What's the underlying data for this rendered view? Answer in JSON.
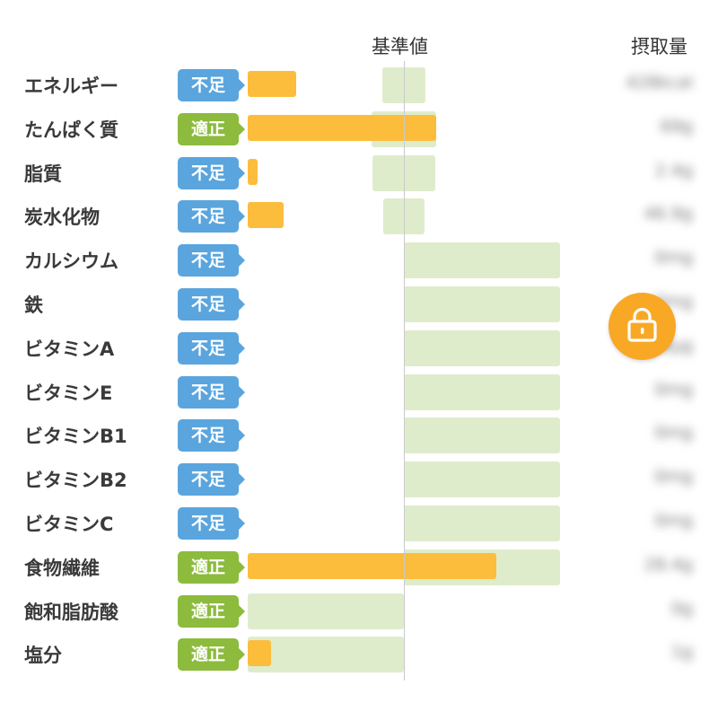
{
  "header": {
    "standard": "基準値",
    "intake": "摂取量"
  },
  "colors": {
    "deficient": "#5aa5de",
    "adequate": "#8cbb3d",
    "bar": "#fcbd3c",
    "range": "#dfeccb",
    "lock": "#f9a825"
  },
  "lock_icon": "lock-icon",
  "rows": [
    {
      "name": "エネルギー",
      "status": "不足",
      "amount": "428kcal"
    },
    {
      "name": "たんぱく質",
      "status": "適正",
      "amount": "69g"
    },
    {
      "name": "脂質",
      "status": "不足",
      "amount": "2.4g"
    },
    {
      "name": "炭水化物",
      "status": "不足",
      "amount": "46.9g"
    },
    {
      "name": "カルシウム",
      "status": "不足",
      "amount": "0mg"
    },
    {
      "name": "鉄",
      "status": "不足",
      "amount": "0mg"
    },
    {
      "name": "ビタミンA",
      "status": "不足",
      "amount": "0μg"
    },
    {
      "name": "ビタミンE",
      "status": "不足",
      "amount": "0mg"
    },
    {
      "name": "ビタミンB1",
      "status": "不足",
      "amount": "0mg"
    },
    {
      "name": "ビタミンB2",
      "status": "不足",
      "amount": "0mg"
    },
    {
      "name": "ビタミンC",
      "status": "不足",
      "amount": "0mg"
    },
    {
      "name": "食物繊維",
      "status": "適正",
      "amount": "28.4g"
    },
    {
      "name": "飽和脂肪酸",
      "status": "適正",
      "amount": "0g"
    },
    {
      "name": "塩分",
      "status": "適正",
      "amount": "1g"
    }
  ]
}
